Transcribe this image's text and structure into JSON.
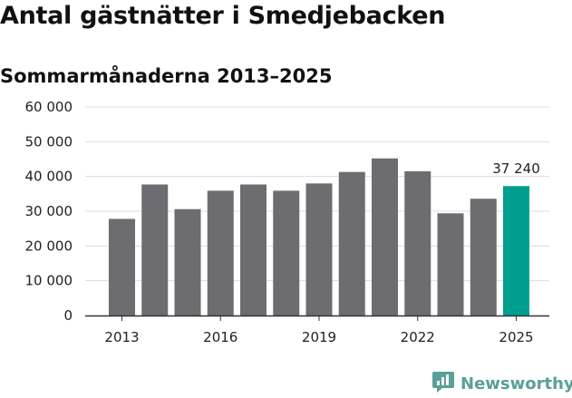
{
  "title": "Antal gästnätter i Smedjebacken",
  "subtitle": "Sommarmånaderna 2013–2025",
  "brand": "Newsworthy",
  "colors": {
    "bar": "#6d6c70",
    "highlight": "#009e8f",
    "grid": "#dcdcdc",
    "axis": "#333333",
    "brand": "#5a9f98"
  },
  "chart_data": {
    "type": "bar",
    "categories": [
      "2013",
      "2014",
      "2015",
      "2016",
      "2017",
      "2018",
      "2019",
      "2020",
      "2021",
      "2022",
      "2023",
      "2024",
      "2025"
    ],
    "values": [
      27800,
      37700,
      30600,
      35900,
      37700,
      35900,
      38000,
      41300,
      45200,
      41500,
      29400,
      33600,
      37240
    ],
    "highlight_index": 12,
    "data_labels": [
      {
        "index": 12,
        "text": "37 240"
      }
    ],
    "xticks": [
      {
        "index": 0,
        "label": "2013"
      },
      {
        "index": 3,
        "label": "2016"
      },
      {
        "index": 6,
        "label": "2019"
      },
      {
        "index": 9,
        "label": "2022"
      },
      {
        "index": 12,
        "label": "2025"
      }
    ],
    "yticks": [
      {
        "value": 0,
        "label": "0"
      },
      {
        "value": 10000,
        "label": "10 000"
      },
      {
        "value": 20000,
        "label": "20 000"
      },
      {
        "value": 30000,
        "label": "30 000"
      },
      {
        "value": 40000,
        "label": "40 000"
      },
      {
        "value": 50000,
        "label": "50 000"
      },
      {
        "value": 60000,
        "label": "60 000"
      }
    ],
    "ylim": [
      0,
      60000
    ],
    "grid": true
  }
}
